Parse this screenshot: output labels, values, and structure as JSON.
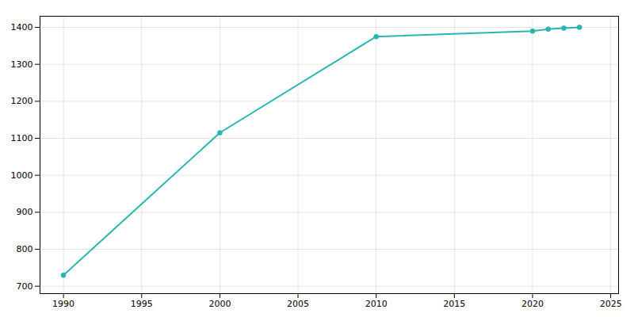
{
  "chart_data": {
    "type": "line",
    "x": [
      1990,
      2000,
      2010,
      2020,
      2021,
      2022,
      2023
    ],
    "values": [
      730,
      1115,
      1375,
      1390,
      1395,
      1398,
      1400
    ],
    "color": "#2ab5b0",
    "marker": "circle",
    "xlim": [
      1988.5,
      2025.5
    ],
    "xticks": [
      1990,
      1995,
      2000,
      2005,
      2010,
      2015,
      2020,
      2025
    ],
    "ylim": [
      680,
      1430
    ],
    "yticks": [
      700,
      800,
      900,
      1000,
      1100,
      1200,
      1300,
      1400
    ],
    "grid": true
  }
}
